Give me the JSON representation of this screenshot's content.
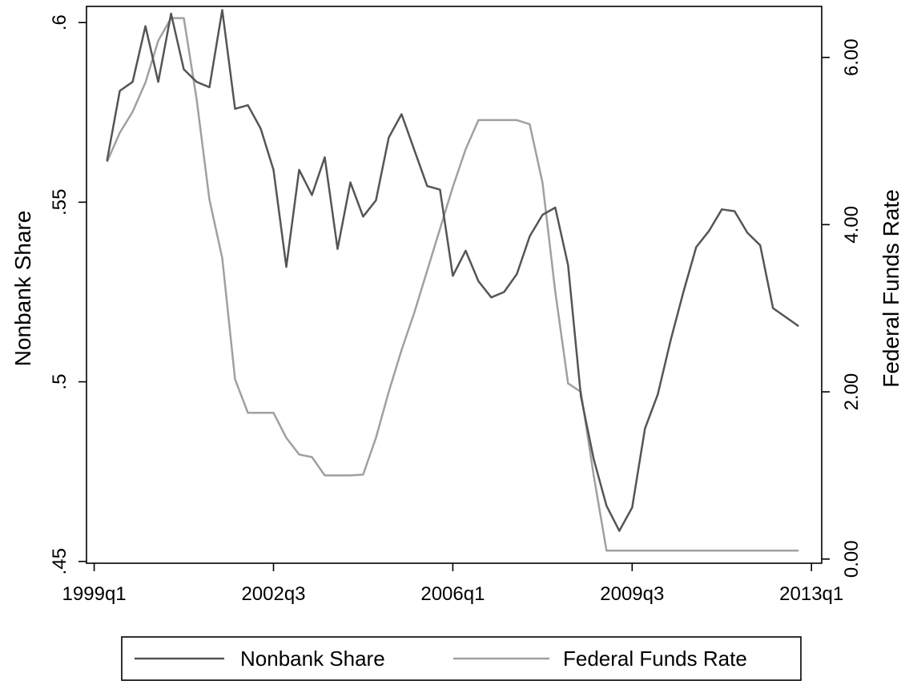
{
  "chart_data": {
    "type": "line",
    "x_quarters": [
      "1999q2",
      "1999q3",
      "1999q4",
      "2000q1",
      "2000q2",
      "2000q3",
      "2000q4",
      "2001q1",
      "2001q2",
      "2001q3",
      "2001q4",
      "2002q1",
      "2002q2",
      "2002q3",
      "2002q4",
      "2003q1",
      "2003q2",
      "2003q3",
      "2003q4",
      "2004q1",
      "2004q2",
      "2004q3",
      "2004q4",
      "2005q1",
      "2005q2",
      "2005q3",
      "2005q4",
      "2006q1",
      "2006q2",
      "2006q3",
      "2006q4",
      "2007q1",
      "2007q2",
      "2007q3",
      "2007q4",
      "2008q1",
      "2008q2",
      "2008q3",
      "2008q4",
      "2009q1",
      "2009q2",
      "2009q3",
      "2009q4",
      "2010q1",
      "2010q2",
      "2010q3",
      "2010q4",
      "2011q1",
      "2011q2",
      "2011q3",
      "2011q4",
      "2012q1",
      "2012q2",
      "2012q3",
      "2012q4"
    ],
    "series": [
      {
        "name": "Nonbank Share",
        "axis": "left",
        "color": "#555555",
        "values": [
          0.5615,
          0.581,
          0.5835,
          0.599,
          0.5835,
          0.6025,
          0.587,
          0.5835,
          0.582,
          0.6035,
          0.576,
          0.577,
          0.5705,
          0.559,
          0.532,
          0.559,
          0.552,
          0.5625,
          0.537,
          0.5555,
          0.546,
          0.5505,
          0.568,
          0.5745,
          0.5645,
          0.5545,
          0.5535,
          0.5295,
          0.5365,
          0.528,
          0.5235,
          0.525,
          0.53,
          0.5405,
          0.5465,
          0.5485,
          0.5325,
          0.496,
          0.4785,
          0.4655,
          0.4585,
          0.465,
          0.487,
          0.4965,
          0.5115,
          0.525,
          0.5375,
          0.542,
          0.548,
          0.5475,
          0.5415,
          0.538,
          0.5205,
          0.518,
          0.5155
        ]
      },
      {
        "name": "Federal Funds Rate",
        "axis": "right",
        "color": "#a0a0a0",
        "values": [
          4.75,
          5.1,
          5.35,
          5.7,
          6.2,
          6.47,
          6.47,
          5.5,
          4.3,
          3.6,
          2.15,
          1.75,
          1.75,
          1.75,
          1.45,
          1.25,
          1.22,
          1.0,
          1.0,
          1.0,
          1.01,
          1.45,
          2.0,
          2.5,
          2.95,
          3.45,
          3.95,
          4.45,
          4.9,
          5.25,
          5.25,
          5.25,
          5.25,
          5.2,
          4.5,
          3.2,
          2.1,
          2.0,
          1.0,
          0.1,
          0.1,
          0.1,
          0.1,
          0.1,
          0.1,
          0.1,
          0.1,
          0.1,
          0.1,
          0.1,
          0.1,
          0.1,
          0.1,
          0.1,
          0.1
        ]
      }
    ],
    "x_ticks": [
      "1999q1",
      "2002q3",
      "2006q1",
      "2009q3",
      "2013q1"
    ],
    "y_left": {
      "label": "Nonbank Share",
      "ticks": [
        ".45",
        ".5",
        ".55",
        ".6"
      ],
      "tick_values": [
        0.45,
        0.5,
        0.55,
        0.6
      ],
      "ylim": [
        0.4495,
        0.6045
      ]
    },
    "y_right": {
      "label": "Federal Funds Rate",
      "ticks": [
        "0.00",
        "2.00",
        "4.00",
        "6.00"
      ],
      "tick_values": [
        0,
        2,
        4,
        6
      ],
      "ylim": [
        -0.05,
        6.61
      ]
    },
    "grid": false,
    "legend_position": "bottom"
  }
}
